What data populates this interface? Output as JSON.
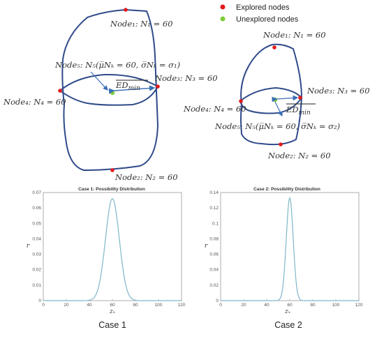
{
  "legend": [
    {
      "label": "Explored nodes",
      "color": "#e31a1c"
    },
    {
      "label": "Unexplored nodes",
      "color": "#7ccd3a"
    }
  ],
  "case1": {
    "node1": "Node₁: N₁ = 60",
    "node2": "Node₂: N₂ = 60",
    "node3": "Node₃: N₃ = 60",
    "node4": "Node₄: N₄ = 60",
    "node5": "Node₅: N₅(μ̅Nₖ = 60, σ̅Nₖ = σ₁)",
    "ed": "ED",
    "ed_sub": "min",
    "caption": "Case 1"
  },
  "case2": {
    "node1": "Node₁: N₁ = 60",
    "node2": "Node₂: N₂ = 60",
    "node3": "Node₃: N₃ = 60",
    "node4": "Node₄: N₄ = 60",
    "node5": "Node₅: N₅(μ̅Nₖ = 60, σ̅Nₖ = σ₂)",
    "ed": "ED",
    "ed_sub": "min",
    "caption": "Case 2"
  },
  "colors": {
    "boundary": "#2f4a8a",
    "curve": "#7fb7c9",
    "explored": "#e31a1c",
    "unexplored": "#7ccd3a"
  },
  "chart_data": [
    {
      "type": "line",
      "title": "Case 1: Possibility Distribution",
      "xlabel": "zₓ",
      "ylabel": "r",
      "xlim": [
        0,
        120
      ],
      "ylim": [
        0,
        0.07
      ],
      "xticks": [
        "0",
        "20",
        "40",
        "60",
        "80",
        "100",
        "120"
      ],
      "yticks": [
        "0",
        "0.01",
        "0.02",
        "0.03",
        "0.04",
        "0.05",
        "0.06",
        "0.07"
      ],
      "series": [
        {
          "mean": 60,
          "peak": 0.066,
          "sigma": 6
        }
      ]
    },
    {
      "type": "line",
      "title": "Case 2: Possibility Distribution",
      "xlabel": "zₓ",
      "ylabel": "r",
      "xlim": [
        0,
        120
      ],
      "ylim": [
        0,
        0.14
      ],
      "xticks": [
        "0",
        "20",
        "40",
        "60",
        "80",
        "100",
        "120"
      ],
      "yticks": [
        "0",
        "0.02",
        "0.04",
        "0.06",
        "0.08",
        "0.1",
        "0.12",
        "0.14"
      ],
      "series": [
        {
          "mean": 60,
          "peak": 0.133,
          "sigma": 3
        }
      ]
    }
  ]
}
